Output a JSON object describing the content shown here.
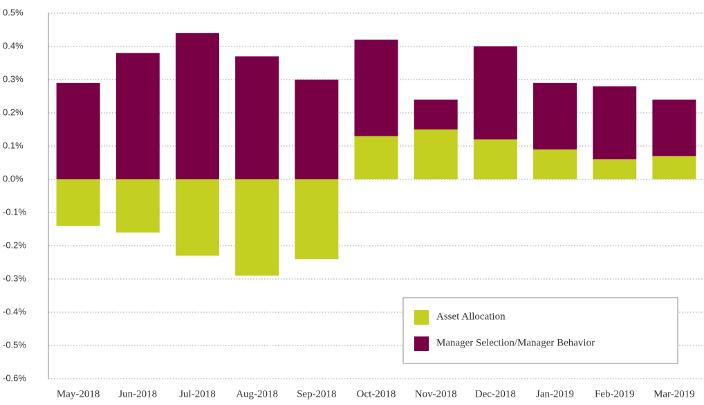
{
  "chart_data": {
    "type": "bar",
    "stacked": true,
    "categories": [
      "May-2018",
      "Jun-2018",
      "Jul-2018",
      "Aug-2018",
      "Sep-2018",
      "Oct-2018",
      "Nov-2018",
      "Dec-2018",
      "Jan-2019",
      "Feb-2019",
      "Mar-2019"
    ],
    "series": [
      {
        "name": "Asset Allocation",
        "color": "#c3cf21",
        "values": [
          -0.14,
          -0.16,
          -0.23,
          -0.29,
          -0.24,
          0.13,
          0.15,
          0.12,
          0.09,
          0.06,
          0.07
        ]
      },
      {
        "name": "Manager Selection/Manager Behavior",
        "color": "#7a0046",
        "values": [
          0.29,
          0.38,
          0.44,
          0.37,
          0.3,
          0.29,
          0.09,
          0.28,
          0.2,
          0.22,
          0.17
        ]
      }
    ],
    "ylim": [
      -0.6,
      0.5
    ],
    "yticks": [
      {
        "value": 0.5,
        "label": "0.5%"
      },
      {
        "value": 0.4,
        "label": "0.4%"
      },
      {
        "value": 0.3,
        "label": "0.3%"
      },
      {
        "value": 0.2,
        "label": "0.2%"
      },
      {
        "value": 0.1,
        "label": "0.1%"
      },
      {
        "value": 0.0,
        "label": "0.0%"
      },
      {
        "value": -0.1,
        "label": "-0.1%"
      },
      {
        "value": -0.2,
        "label": "-0.2%"
      },
      {
        "value": -0.3,
        "label": "-0.3%"
      },
      {
        "value": -0.4,
        "label": "-0.4%"
      },
      {
        "value": -0.5,
        "label": "-0.5%"
      },
      {
        "value": -0.6,
        "label": "-0.6%"
      }
    ],
    "grid": true,
    "legend": "lower right"
  }
}
